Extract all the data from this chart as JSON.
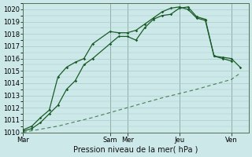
{
  "xlabel": "Pression niveau de la mer( hPa )",
  "ylim": [
    1010,
    1020.5
  ],
  "bg_color": "#cce8e8",
  "grid_color": "#aacccc",
  "dark_green": "#1a5c28",
  "xtick_labels": [
    "Mar",
    "Sam",
    "Mer",
    "Jeu",
    "Ven"
  ],
  "xtick_positions": [
    0,
    5,
    6,
    9,
    12
  ],
  "xlim": [
    0,
    13
  ],
  "line1_x": [
    0,
    0.5,
    1,
    1.5,
    2,
    2.5,
    3,
    3.5,
    4,
    5,
    5.5,
    6,
    6.5,
    7,
    7.5,
    8,
    8.5,
    9,
    9.5,
    10,
    10.5,
    11,
    11.5,
    12
  ],
  "line1_y": [
    1010.1,
    1010.3,
    1010.8,
    1011.5,
    1012.2,
    1013.5,
    1014.2,
    1015.5,
    1016.0,
    1017.2,
    1017.8,
    1017.8,
    1017.5,
    1018.5,
    1019.2,
    1019.5,
    1019.6,
    1020.1,
    1020.2,
    1019.4,
    1019.2,
    1016.2,
    1016.0,
    1015.8
  ],
  "line2_x": [
    0,
    0.5,
    1,
    1.5,
    2,
    2.5,
    3,
    3.5,
    4,
    5,
    5.5,
    6,
    6.5,
    7,
    7.5,
    8,
    8.5,
    9,
    9.5,
    10,
    10.5,
    11,
    11.5,
    12,
    12.5
  ],
  "line2_y": [
    1010.2,
    1010.5,
    1011.2,
    1011.8,
    1014.5,
    1015.3,
    1015.7,
    1016.0,
    1017.2,
    1018.2,
    1018.1,
    1018.1,
    1018.3,
    1018.8,
    1019.3,
    1019.8,
    1020.1,
    1020.2,
    1020.0,
    1019.3,
    1019.1,
    1016.2,
    1016.1,
    1016.0,
    1015.3
  ],
  "line3_x": [
    0,
    2,
    4,
    6,
    8,
    10,
    12,
    12.5
  ],
  "line3_y": [
    1010.0,
    1010.5,
    1011.2,
    1012.0,
    1012.8,
    1013.5,
    1014.3,
    1014.8
  ]
}
